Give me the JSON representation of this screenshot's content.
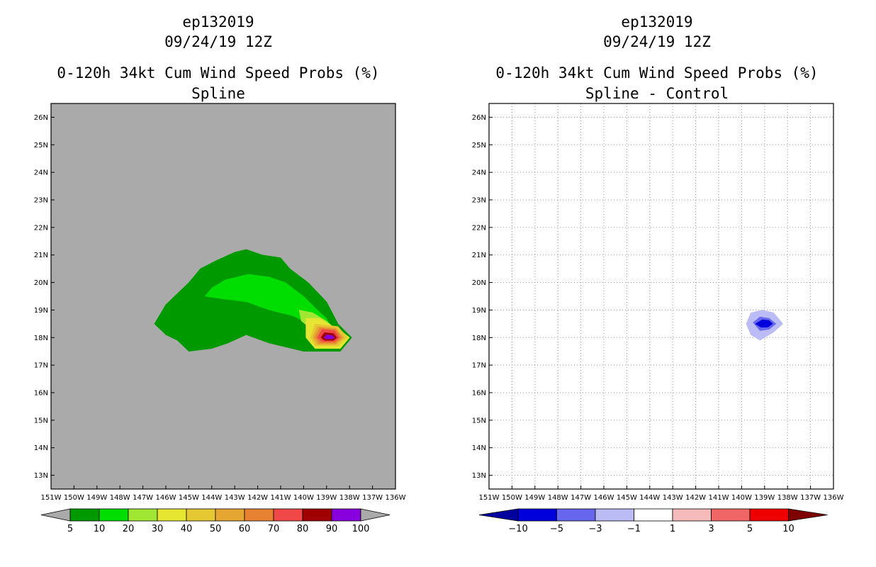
{
  "chart_data": [
    {
      "type": "heatmap",
      "id": "left",
      "title_lines": [
        "ep132019",
        "09/24/19 12Z",
        "0-120h 34kt Cum Wind Speed Probs (%)",
        "Spline"
      ],
      "x_ticks": [
        "151W",
        "150W",
        "149W",
        "148W",
        "147W",
        "146W",
        "145W",
        "144W",
        "143W",
        "142W",
        "141W",
        "140W",
        "139W",
        "138W",
        "137W",
        "136W"
      ],
      "y_ticks": [
        "13N",
        "14N",
        "15N",
        "16N",
        "17N",
        "18N",
        "19N",
        "20N",
        "21N",
        "22N",
        "23N",
        "24N",
        "25N",
        "26N"
      ],
      "x_range_lon": [
        -151,
        -136
      ],
      "y_range_lat": [
        12.5,
        26.5
      ],
      "background_color": "#aaaaaa",
      "grid": false,
      "colorbar": {
        "labels": [
          "5",
          "10",
          "20",
          "30",
          "40",
          "50",
          "60",
          "70",
          "80",
          "90",
          "100"
        ],
        "colors": [
          "#009900",
          "#00dd00",
          "#a0e632",
          "#e6e632",
          "#e6c832",
          "#e6a632",
          "#e68232",
          "#f04848",
          "#a00000",
          "#8800dd"
        ],
        "end_color": "#aaaaaa"
      },
      "contours": [
        {
          "level": 5,
          "color": "#009900",
          "polygon": [
            [
              -146.5,
              18.5
            ],
            [
              -146,
              19.2
            ],
            [
              -145.5,
              19.6
            ],
            [
              -145,
              20
            ],
            [
              -144.5,
              20.5
            ],
            [
              -143.8,
              20.8
            ],
            [
              -143,
              21.1
            ],
            [
              -142.5,
              21.2
            ],
            [
              -141.8,
              21
            ],
            [
              -141,
              20.9
            ],
            [
              -140.6,
              20.5
            ],
            [
              -139.8,
              20
            ],
            [
              -139,
              19.3
            ],
            [
              -138.5,
              18.5
            ],
            [
              -137.9,
              18
            ],
            [
              -138.4,
              17.5
            ],
            [
              -140,
              17.5
            ],
            [
              -141.5,
              17.8
            ],
            [
              -142.5,
              18.1
            ],
            [
              -143.3,
              17.8
            ],
            [
              -144,
              17.6
            ],
            [
              -145,
              17.5
            ],
            [
              -145.5,
              17.9
            ],
            [
              -146,
              18.1
            ]
          ]
        },
        {
          "level": 10,
          "color": "#00dd00",
          "polygon": [
            [
              -144.3,
              19.5
            ],
            [
              -144,
              19.8
            ],
            [
              -143.4,
              20.1
            ],
            [
              -142.4,
              20.3
            ],
            [
              -141.5,
              20.2
            ],
            [
              -140.8,
              20
            ],
            [
              -140,
              19.5
            ],
            [
              -139.4,
              19
            ],
            [
              -139,
              18.7
            ],
            [
              -138.8,
              18.3
            ],
            [
              -139.5,
              18.4
            ],
            [
              -140.5,
              18.8
            ],
            [
              -141.5,
              19
            ],
            [
              -142.5,
              19.3
            ],
            [
              -143.5,
              19.4
            ]
          ]
        },
        {
          "level": 20,
          "color": "#a0e632",
          "polygon": [
            [
              -140.2,
              19
            ],
            [
              -139.6,
              18.9
            ],
            [
              -139,
              18.6
            ],
            [
              -138.6,
              18.3
            ],
            [
              -138.9,
              18
            ],
            [
              -139.5,
              18.2
            ],
            [
              -140.1,
              18.6
            ]
          ]
        },
        {
          "level": 30,
          "color": "#e6e632",
          "polygon": [
            [
              -139.9,
              18.7
            ],
            [
              -139.3,
              18.7
            ],
            [
              -138.3,
              18.2
            ],
            [
              -138,
              18
            ],
            [
              -138.4,
              17.6
            ],
            [
              -139.5,
              17.6
            ],
            [
              -139.9,
              18
            ]
          ]
        },
        {
          "level": 40,
          "color": "#e6c832",
          "polygon": [
            [
              -139.5,
              18.5
            ],
            [
              -138.5,
              18.4
            ],
            [
              -138.1,
              18
            ],
            [
              -138.5,
              17.7
            ],
            [
              -139.5,
              17.7
            ],
            [
              -139.7,
              18
            ]
          ]
        },
        {
          "level": 50,
          "color": "#e6a632",
          "polygon": [
            [
              -139.4,
              18.4
            ],
            [
              -138.6,
              18.35
            ],
            [
              -138.25,
              18
            ],
            [
              -138.6,
              17.75
            ],
            [
              -139.4,
              17.75
            ],
            [
              -139.6,
              18
            ]
          ]
        },
        {
          "level": 60,
          "color": "#e68232",
          "polygon": [
            [
              -139.3,
              18.35
            ],
            [
              -138.6,
              18.3
            ],
            [
              -138.35,
              18
            ],
            [
              -138.6,
              17.8
            ],
            [
              -139.3,
              17.8
            ],
            [
              -139.5,
              18
            ]
          ]
        },
        {
          "level": 70,
          "color": "#f04848",
          "polygon": [
            [
              -139.2,
              18.3
            ],
            [
              -138.65,
              18.25
            ],
            [
              -138.45,
              18
            ],
            [
              -138.65,
              17.85
            ],
            [
              -139.2,
              17.85
            ],
            [
              -139.4,
              18
            ]
          ]
        },
        {
          "level": 80,
          "color": "#a00000",
          "polygon": [
            [
              -139.1,
              18.18
            ],
            [
              -138.7,
              18.15
            ],
            [
              -138.55,
              18
            ],
            [
              -138.7,
              17.9
            ],
            [
              -139.1,
              17.9
            ],
            [
              -139.25,
              18
            ]
          ]
        },
        {
          "level": 90,
          "color": "#8800dd",
          "polygon": [
            [
              -139,
              18.1
            ],
            [
              -138.75,
              18.08
            ],
            [
              -138.65,
              18
            ],
            [
              -138.75,
              17.95
            ],
            [
              -139,
              17.95
            ],
            [
              -139.12,
              18
            ]
          ]
        }
      ]
    },
    {
      "type": "heatmap",
      "id": "right",
      "title_lines": [
        "ep132019",
        "09/24/19 12Z",
        "0-120h 34kt Cum Wind Speed Probs (%)",
        "Spline - Control"
      ],
      "x_ticks": [
        "151W",
        "150W",
        "149W",
        "148W",
        "147W",
        "146W",
        "145W",
        "144W",
        "143W",
        "142W",
        "141W",
        "140W",
        "139W",
        "138W",
        "137W",
        "136W"
      ],
      "y_ticks": [
        "13N",
        "14N",
        "15N",
        "16N",
        "17N",
        "18N",
        "19N",
        "20N",
        "21N",
        "22N",
        "23N",
        "24N",
        "25N",
        "26N"
      ],
      "x_range_lon": [
        -151,
        -136
      ],
      "y_range_lat": [
        12.5,
        26.5
      ],
      "background_color": "#ffffff",
      "grid": true,
      "colorbar": {
        "labels": [
          "-10",
          "-5",
          "-3",
          "-1",
          "1",
          "3",
          "5",
          "10"
        ],
        "colors": [
          "#0000dd",
          "#6666ee",
          "#bbbbf5",
          "#ffffff",
          "#f5bbbb",
          "#f06666",
          "#ee0000"
        ],
        "start_color": "#00009e",
        "end_color": "#7f0000"
      },
      "contours": [
        {
          "level": -1,
          "color": "#bbbbf5",
          "polygon": [
            [
              -139.8,
              18.5
            ],
            [
              -139.6,
              18.9
            ],
            [
              -139.1,
              19
            ],
            [
              -138.6,
              18.9
            ],
            [
              -138.2,
              18.5
            ],
            [
              -138.6,
              18.2
            ],
            [
              -139.2,
              17.9
            ],
            [
              -139.6,
              18.1
            ]
          ]
        },
        {
          "level": -3,
          "color": "#6666ee",
          "polygon": [
            [
              -139.5,
              18.55
            ],
            [
              -139.2,
              18.75
            ],
            [
              -138.8,
              18.7
            ],
            [
              -138.5,
              18.5
            ],
            [
              -138.8,
              18.3
            ],
            [
              -139.2,
              18.25
            ]
          ]
        },
        {
          "level": -5,
          "color": "#0000dd",
          "polygon": [
            [
              -139.4,
              18.5
            ],
            [
              -139.1,
              18.65
            ],
            [
              -138.8,
              18.62
            ],
            [
              -138.65,
              18.5
            ],
            [
              -138.85,
              18.38
            ],
            [
              -139.15,
              18.37
            ]
          ]
        }
      ]
    }
  ]
}
